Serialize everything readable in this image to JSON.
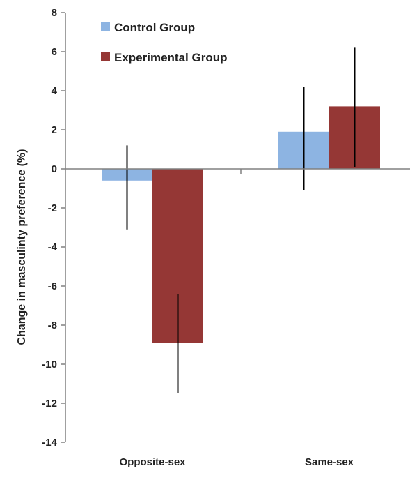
{
  "chart_data": {
    "type": "bar",
    "title": "",
    "xlabel": "",
    "ylabel": "Change in masculinty preference (%)",
    "ylim": [
      -14,
      8
    ],
    "yticks": [
      8,
      6,
      4,
      2,
      0,
      -2,
      -4,
      -6,
      -8,
      -10,
      -12,
      -14
    ],
    "categories": [
      "Opposite-sex",
      "Same-sex"
    ],
    "series": [
      {
        "name": "Control Group",
        "color": "#8db4e2",
        "values": [
          -0.6,
          1.9
        ],
        "error_low": [
          -3.1,
          -1.1
        ],
        "error_high": [
          1.2,
          4.2
        ]
      },
      {
        "name": "Experimental Group",
        "color": "#953735",
        "values": [
          -8.9,
          3.2
        ],
        "error_low": [
          -11.5,
          0.1
        ],
        "error_high": [
          -6.4,
          6.2
        ]
      }
    ],
    "legend": "top-left",
    "grid": false
  }
}
